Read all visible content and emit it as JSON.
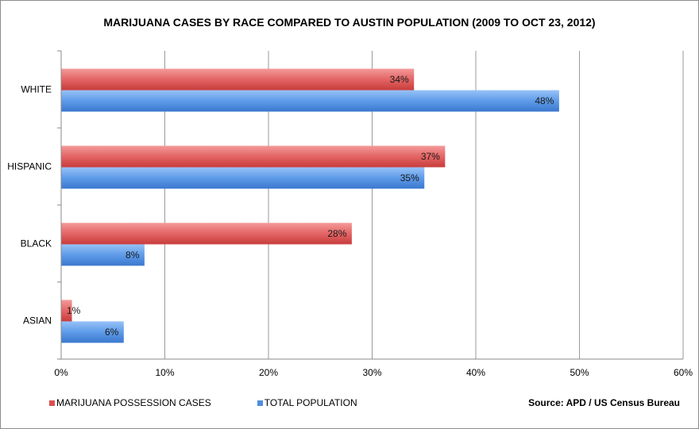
{
  "chart_data": {
    "type": "bar",
    "orientation": "horizontal",
    "title": "MARIJUANA CASES BY RACE COMPARED TO AUSTIN POPULATION (2009 TO OCT 23, 2012)",
    "categories": [
      "WHITE",
      "HISPANIC",
      "BLACK",
      "ASIAN"
    ],
    "series": [
      {
        "name": "MARIJUANA POSSESSION CASES",
        "values": [
          34,
          37,
          28,
          1
        ],
        "labels": [
          "34%",
          "37%",
          "28%",
          "1%"
        ],
        "color": "#e05555"
      },
      {
        "name": "TOTAL POPULATION",
        "values": [
          48,
          35,
          8,
          6
        ],
        "labels": [
          "48%",
          "35%",
          "8%",
          "6%"
        ],
        "color": "#4f8ee0"
      }
    ],
    "xlim": [
      0,
      60
    ],
    "xticks": [
      0,
      10,
      20,
      30,
      40,
      50,
      60
    ],
    "xtick_labels": [
      "0%",
      "10%",
      "20%",
      "30%",
      "40%",
      "50%",
      "60%"
    ],
    "xlabel": "",
    "ylabel": "",
    "grid": true,
    "legend_position": "bottom-left"
  },
  "source": "Source: APD / US Census Bureau"
}
